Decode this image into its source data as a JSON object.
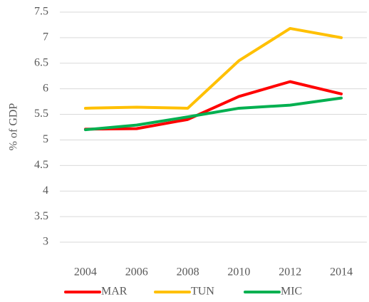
{
  "chart_data": {
    "type": "line",
    "y_label": "% of GDP",
    "categories": [
      "2004",
      "2006",
      "2008",
      "2010",
      "2012",
      "2014"
    ],
    "series": [
      {
        "name": "MAR",
        "color": "#ff0000",
        "values": [
          5.21,
          5.22,
          5.4,
          5.85,
          6.14,
          5.9
        ]
      },
      {
        "name": "TUN",
        "color": "#ffc000",
        "values": [
          5.62,
          5.64,
          5.62,
          6.55,
          7.18,
          7.0
        ]
      },
      {
        "name": "MIC",
        "color": "#00b050",
        "values": [
          5.2,
          5.29,
          5.45,
          5.62,
          5.68,
          5.82
        ]
      }
    ],
    "ylim": [
      3,
      7.5
    ],
    "yticks": [
      3,
      3.5,
      4,
      4.5,
      5,
      5.5,
      6,
      6.5,
      7,
      7.5
    ],
    "grid": true,
    "legend": "bottom"
  }
}
